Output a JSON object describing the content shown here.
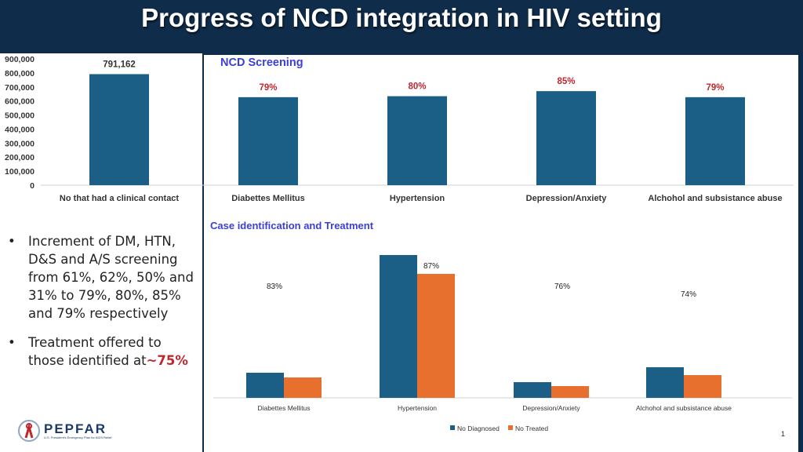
{
  "header": {
    "title": "Progress of NCD integration in HIV setting"
  },
  "top_chart": {
    "section_title": "NCD Screening",
    "y_ticks": [
      "900,000",
      "800,000",
      "700,000",
      "600,000",
      "500,000",
      "400,000",
      "300,000",
      "200,000",
      "100,000",
      "0"
    ],
    "bar_color": "#1b5e86",
    "title_color": "#3b3fd8",
    "pct_color": "#c0272d"
  },
  "bottom_chart": {
    "section_title": "Case identification and Treatment",
    "legend": [
      "No Diagnosed",
      "No Treated"
    ],
    "colors": [
      "#1b5e86",
      "#e8702f"
    ]
  },
  "chart_data": [
    {
      "type": "bar",
      "title": "NCD Screening",
      "categories": [
        "No that had a clinical contact",
        "Diabettes Mellitus",
        "Hypertension",
        "Depression/Anxiety",
        "Alchohol and subsistance abuse"
      ],
      "values": [
        791162,
        627000,
        634000,
        670000,
        627000
      ],
      "data_labels": [
        "791,162",
        "79%",
        "80%",
        "85%",
        "79%"
      ],
      "ylim": [
        0,
        900000
      ],
      "grid": false
    },
    {
      "type": "bar",
      "title": "Case identification and Treatment",
      "categories": [
        "Diabettes Mellitus",
        "Hypertension",
        "Depression/Anxiety",
        "Alchohol and subsistance abuse"
      ],
      "series": [
        {
          "name": "No Diagnosed",
          "values": [
            32,
            182,
            20,
            39
          ]
        },
        {
          "name": "No Treated",
          "values": [
            26,
            158,
            15,
            29
          ]
        }
      ],
      "data_labels": [
        "83%",
        "87%",
        "76%",
        "74%"
      ],
      "legend": "bottom-center"
    }
  ],
  "bullets": [
    {
      "text": "Increment of DM, HTN, D&S and A/S screening from 61%, 62%, 50% and 31% to 79%, 80%, 85% and 79% respectively",
      "highlight": ""
    },
    {
      "text": "Treatment offered to those identified at",
      "highlight": "~75%"
    }
  ],
  "logo": {
    "word": "PEPFAR",
    "sub": "U.S. President's Emergency Plan for AIDS Relief"
  },
  "page_number": "1"
}
